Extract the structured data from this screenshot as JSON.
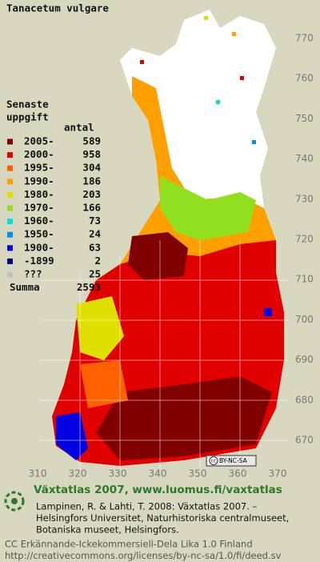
{
  "title": "Tanacetum vulgare",
  "legend": {
    "heading": [
      "Senaste",
      "uppgift"
    ],
    "count_header": "antal",
    "entries": [
      {
        "label": "2005-",
        "count": 589,
        "color": "#800000"
      },
      {
        "label": "2000-",
        "count": 958,
        "color": "#e00000"
      },
      {
        "label": "1995-",
        "count": 304,
        "color": "#ff6000"
      },
      {
        "label": "1990-",
        "count": 186,
        "color": "#ffa000"
      },
      {
        "label": "1980-",
        "count": 203,
        "color": "#e0e000"
      },
      {
        "label": "1970-",
        "count": 166,
        "color": "#90e020"
      },
      {
        "label": "1960-",
        "count": 73,
        "color": "#00e0e0"
      },
      {
        "label": "1950-",
        "count": 24,
        "color": "#0090f0"
      },
      {
        "label": "1900-",
        "count": 63,
        "color": "#0000e0"
      },
      {
        "label": "-1899",
        "count": 2,
        "color": "#000080"
      },
      {
        "label": "???",
        "count": 25,
        "color": "#c0c0c0"
      }
    ],
    "total_label": "Summa",
    "total": 2593
  },
  "x_labels": [
    "310",
    "320",
    "330",
    "340",
    "350",
    "360",
    "370"
  ],
  "y_labels": [
    "770",
    "760",
    "750",
    "740",
    "730",
    "720",
    "710",
    "700",
    "690",
    "680",
    "670"
  ],
  "badge": {
    "cc": "cc",
    "text": "BY-NC-SA"
  },
  "footer": {
    "heading": "Växtatlas 2007, www.luomus.fi/vaxtatlas",
    "citation": [
      "Lampinen, R. & Lahti, T. 2008: Växtatlas 2007. –",
      "Helsingfors Universitet, Naturhistoriska centralmuseet,",
      "Botaniska museet, Helsingfors."
    ],
    "license": [
      "CC Erkännande-Ickekommersiell-Dela Lika 1.0 Finland",
      "http://creativecommons.org/licenses/by-nc-sa/1.0/fi/deed.sv"
    ]
  }
}
